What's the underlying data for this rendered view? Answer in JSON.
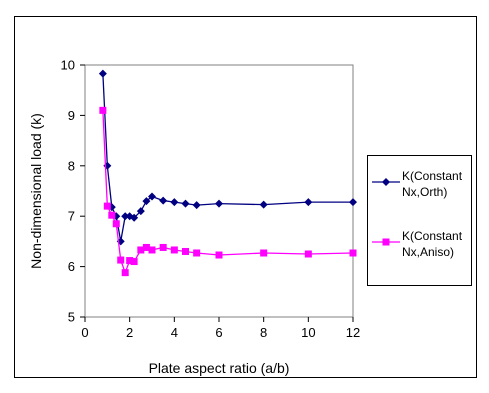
{
  "chart_data": {
    "type": "line",
    "title": "",
    "xlabel": "Plate aspect ratio (a/b)",
    "ylabel": "Non-dimensional load (k)",
    "xlim": [
      0,
      12
    ],
    "ylim": [
      5,
      10
    ],
    "xticks": [
      0,
      2,
      4,
      6,
      8,
      10,
      12
    ],
    "yticks": [
      5,
      6,
      7,
      8,
      9,
      10
    ],
    "grid": false,
    "legend_position": "right",
    "series": [
      {
        "name": "K(Constant Nx,Orth)",
        "legend_lines": [
          "K(Constant",
          "Nx,Orth)"
        ],
        "color": "#000080",
        "marker": "diamond",
        "x": [
          0.8,
          1.0,
          1.2,
          1.4,
          1.6,
          1.8,
          2.0,
          2.2,
          2.5,
          2.75,
          3.0,
          3.5,
          4.0,
          4.5,
          5.0,
          6.0,
          8.0,
          10.0,
          12.0
        ],
        "y": [
          9.83,
          8.0,
          7.18,
          7.0,
          6.5,
          7.0,
          7.0,
          6.97,
          7.1,
          7.3,
          7.39,
          7.31,
          7.28,
          7.25,
          7.22,
          7.25,
          7.23,
          7.28,
          7.28
        ]
      },
      {
        "name": "K(Constant Nx,Aniso)",
        "legend_lines": [
          "K(Constant",
          "Nx,Aniso)"
        ],
        "color": "#ff00ff",
        "marker": "square",
        "x": [
          0.8,
          1.0,
          1.2,
          1.4,
          1.6,
          1.8,
          2.0,
          2.2,
          2.5,
          2.75,
          3.0,
          3.5,
          4.0,
          4.5,
          5.0,
          6.0,
          8.0,
          10.0,
          12.0
        ],
        "y": [
          9.1,
          7.2,
          7.02,
          6.85,
          6.13,
          5.88,
          6.12,
          6.1,
          6.33,
          6.38,
          6.33,
          6.38,
          6.33,
          6.3,
          6.27,
          6.23,
          6.27,
          6.25,
          6.27
        ]
      }
    ]
  }
}
